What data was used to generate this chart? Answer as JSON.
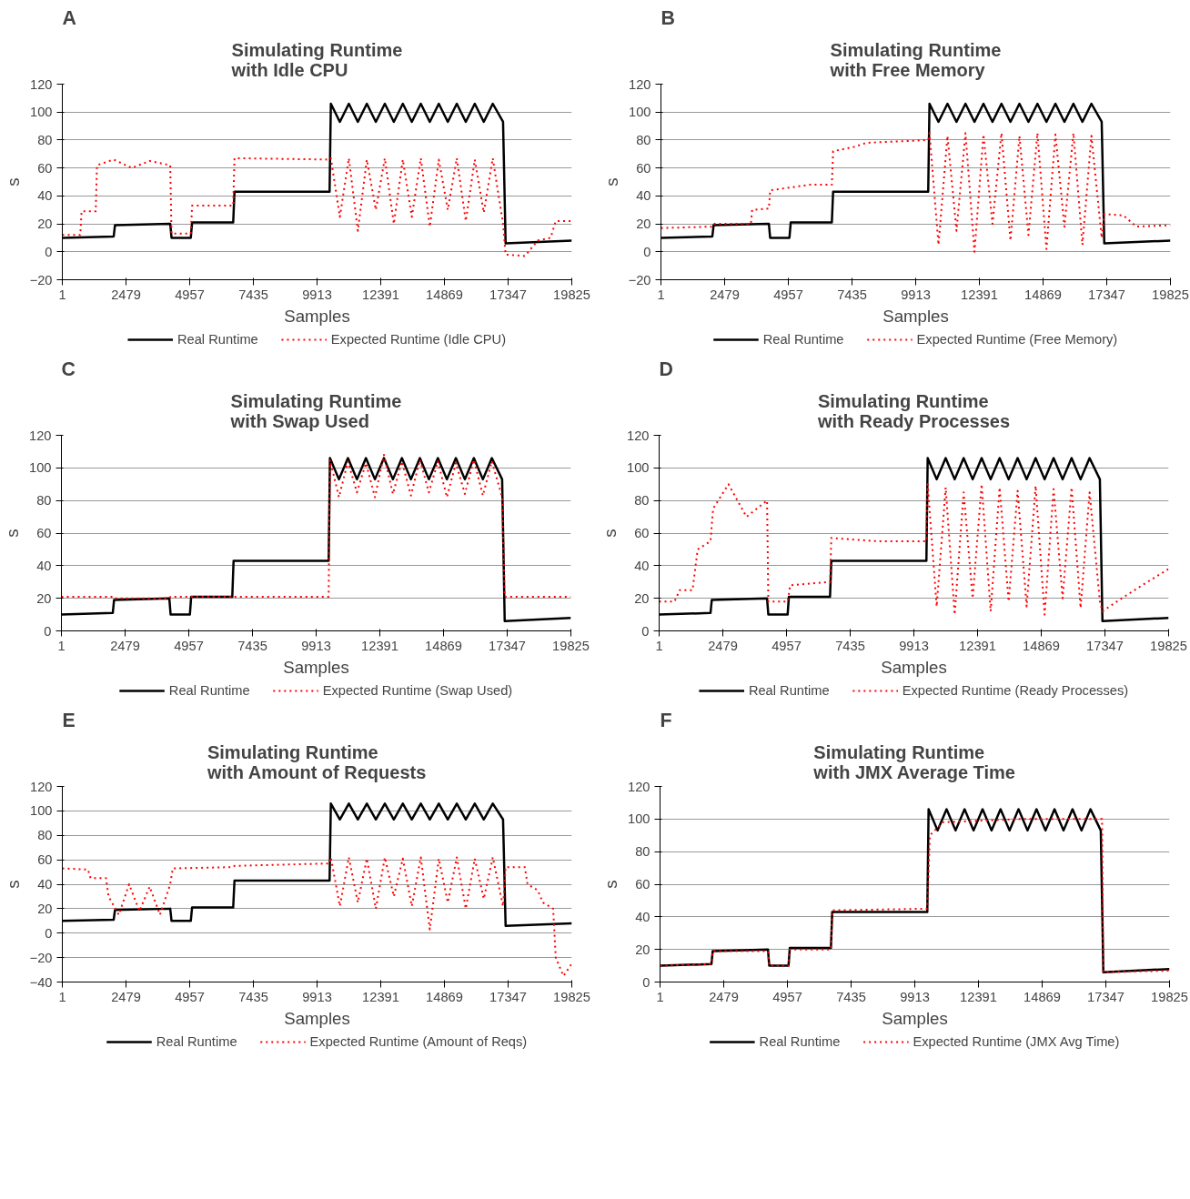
{
  "chart_data": [
    {
      "type": "line",
      "title": "Simulating Runtime\nwith Idle CPU",
      "annotations": [
        "A"
      ],
      "ylabel": "s",
      "xlabel": "Samples",
      "xlim": [
        1,
        19825
      ],
      "xticks": [
        1,
        2479,
        4957,
        7435,
        9913,
        12391,
        14869,
        17347,
        19825
      ],
      "ylim": [
        -20,
        120
      ],
      "yticks": [
        -20,
        0,
        20,
        40,
        60,
        80,
        100,
        120
      ],
      "grid": "y",
      "legend": "bottom",
      "marker": "none",
      "series": [
        {
          "name": "Real Runtime",
          "color": "#000000",
          "line_style": "solid",
          "x": [
            1,
            2000,
            2050,
            4200,
            4250,
            5000,
            5050,
            6650,
            6700,
            10400,
            10450,
            10800,
            11150,
            11500,
            11850,
            12200,
            12550,
            12900,
            13250,
            13600,
            13950,
            14300,
            14650,
            15000,
            15350,
            15700,
            16050,
            16400,
            16750,
            17150,
            17250,
            19825
          ],
          "values": [
            10,
            11,
            19,
            20,
            10,
            10,
            21,
            21,
            43,
            43,
            106,
            93,
            106,
            93,
            106,
            93,
            106,
            93,
            106,
            93,
            106,
            93,
            106,
            93,
            106,
            93,
            106,
            93,
            106,
            93,
            6,
            8
          ]
        },
        {
          "name": "Expected Runtime (Idle CPU)",
          "color": "#ff0000",
          "line_style": "dotted",
          "x": [
            1,
            700,
            750,
            1300,
            1350,
            2000,
            2700,
            3400,
            4200,
            4250,
            5000,
            5050,
            6650,
            6700,
            10400,
            10450,
            10800,
            11150,
            11500,
            11850,
            12200,
            12550,
            12900,
            13250,
            13600,
            13950,
            14300,
            14650,
            15000,
            15350,
            15700,
            16050,
            16400,
            16750,
            17150,
            17250,
            18000,
            18500,
            19000,
            19200,
            19825
          ],
          "values": [
            12,
            12,
            29,
            29,
            62,
            66,
            60,
            65,
            62,
            13,
            13,
            33,
            33,
            67,
            66,
            67,
            25,
            67,
            15,
            66,
            30,
            67,
            20,
            66,
            25,
            67,
            18,
            66,
            30,
            67,
            22,
            66,
            28,
            67,
            20,
            -2,
            -3,
            8,
            10,
            22,
            22
          ]
        }
      ]
    },
    {
      "type": "line",
      "title": "Simulating Runtime\nwith Free Memory",
      "annotations": [
        "B"
      ],
      "ylabel": "s",
      "xlabel": "Samples",
      "xlim": [
        1,
        19825
      ],
      "xticks": [
        1,
        2479,
        4957,
        7435,
        9913,
        12391,
        14869,
        17347,
        19825
      ],
      "ylim": [
        -20,
        120
      ],
      "yticks": [
        -20,
        0,
        20,
        40,
        60,
        80,
        100,
        120
      ],
      "grid": "y",
      "legend": "bottom",
      "marker": "none",
      "series": [
        {
          "name": "Real Runtime",
          "color": "#000000",
          "line_style": "solid",
          "x": [
            1,
            2000,
            2050,
            4200,
            4250,
            5000,
            5050,
            6650,
            6700,
            10400,
            10450,
            10800,
            11150,
            11500,
            11850,
            12200,
            12550,
            12900,
            13250,
            13600,
            13950,
            14300,
            14650,
            15000,
            15350,
            15700,
            16050,
            16400,
            16750,
            17150,
            17250,
            19825
          ],
          "values": [
            10,
            11,
            19,
            20,
            10,
            10,
            21,
            21,
            43,
            43,
            106,
            93,
            106,
            93,
            106,
            93,
            106,
            93,
            106,
            93,
            106,
            93,
            106,
            93,
            106,
            93,
            106,
            93,
            106,
            93,
            6,
            8
          ]
        },
        {
          "name": "Expected Runtime (Free Memory)",
          "color": "#ff0000",
          "line_style": "dotted",
          "x": [
            1,
            2000,
            2050,
            3500,
            3550,
            4200,
            4250,
            5800,
            6650,
            6700,
            7500,
            8000,
            10400,
            10450,
            10800,
            11150,
            11500,
            11850,
            12200,
            12550,
            12900,
            13250,
            13600,
            13950,
            14300,
            14650,
            15000,
            15350,
            15700,
            16050,
            16400,
            16750,
            17150,
            17250,
            18000,
            18500,
            19825
          ],
          "values": [
            17,
            18,
            20,
            20,
            30,
            31,
            44,
            48,
            48,
            72,
            75,
            78,
            80,
            85,
            5,
            83,
            15,
            85,
            0,
            84,
            20,
            85,
            8,
            83,
            12,
            85,
            2,
            84,
            18,
            85,
            5,
            83,
            10,
            27,
            26,
            18,
            19
          ]
        }
      ]
    },
    {
      "type": "line",
      "title": "Simulating Runtime\nwith Swap Used",
      "annotations": [
        "C"
      ],
      "ylabel": "s",
      "xlabel": "Samples",
      "xlim": [
        1,
        19825
      ],
      "xticks": [
        1,
        2479,
        4957,
        7435,
        9913,
        12391,
        14869,
        17347,
        19825
      ],
      "ylim": [
        0,
        120
      ],
      "yticks": [
        0,
        20,
        40,
        60,
        80,
        100,
        120
      ],
      "grid": "y",
      "legend": "bottom",
      "marker": "none",
      "series": [
        {
          "name": "Real Runtime",
          "color": "#000000",
          "line_style": "solid",
          "x": [
            1,
            2000,
            2050,
            4200,
            4250,
            5000,
            5050,
            6650,
            6700,
            10400,
            10450,
            10800,
            11150,
            11500,
            11850,
            12200,
            12550,
            12900,
            13250,
            13600,
            13950,
            14300,
            14650,
            15000,
            15350,
            15700,
            16050,
            16400,
            16750,
            17150,
            17250,
            19825
          ],
          "values": [
            10,
            11,
            19,
            20,
            10,
            10,
            21,
            21,
            43,
            43,
            106,
            93,
            106,
            93,
            106,
            93,
            106,
            93,
            106,
            93,
            106,
            93,
            106,
            93,
            106,
            93,
            106,
            93,
            106,
            93,
            6,
            8
          ]
        },
        {
          "name": "Expected Runtime (Swap Used)",
          "color": "#ff0000",
          "line_style": "dotted",
          "x": [
            1,
            2000,
            2050,
            4200,
            4250,
            10400,
            10450,
            10800,
            11150,
            11500,
            11850,
            12200,
            12550,
            12900,
            13250,
            13600,
            13950,
            14300,
            14650,
            15000,
            15350,
            15700,
            16050,
            16400,
            16750,
            17150,
            17250,
            19825
          ],
          "values": [
            21,
            21,
            20,
            20,
            21,
            21,
            105,
            82,
            104,
            85,
            103,
            82,
            108,
            84,
            104,
            83,
            105,
            85,
            104,
            82,
            103,
            84,
            105,
            83,
            104,
            82,
            21,
            21
          ]
        }
      ]
    },
    {
      "type": "line",
      "title": "Simulating Runtime\nwith Ready Processes",
      "annotations": [
        "D"
      ],
      "ylabel": "s",
      "xlabel": "Samples",
      "xlim": [
        1,
        19825
      ],
      "xticks": [
        1,
        2479,
        4957,
        7435,
        9913,
        12391,
        14869,
        17347,
        19825
      ],
      "ylim": [
        0,
        120
      ],
      "yticks": [
        0,
        20,
        40,
        60,
        80,
        100,
        120
      ],
      "grid": "y",
      "legend": "bottom",
      "marker": "none",
      "series": [
        {
          "name": "Real Runtime",
          "color": "#000000",
          "line_style": "solid",
          "x": [
            1,
            2000,
            2050,
            4200,
            4250,
            5000,
            5050,
            6650,
            6700,
            10400,
            10450,
            10800,
            11150,
            11500,
            11850,
            12200,
            12550,
            12900,
            13250,
            13600,
            13950,
            14300,
            14650,
            15000,
            15350,
            15700,
            16050,
            16400,
            16750,
            17150,
            17250,
            19825
          ],
          "values": [
            10,
            11,
            19,
            20,
            10,
            10,
            21,
            21,
            43,
            43,
            106,
            93,
            106,
            93,
            106,
            93,
            106,
            93,
            106,
            93,
            106,
            93,
            106,
            93,
            106,
            93,
            106,
            93,
            106,
            93,
            6,
            8
          ]
        },
        {
          "name": "Expected Runtime (Ready Processes)",
          "color": "#ff0000",
          "line_style": "dotted",
          "x": [
            1,
            600,
            800,
            1300,
            1500,
            2000,
            2100,
            2700,
            3400,
            4200,
            4250,
            5000,
            5100,
            6650,
            6700,
            8500,
            10400,
            10450,
            10800,
            11150,
            11500,
            11850,
            12200,
            12550,
            12900,
            13250,
            13600,
            13950,
            14300,
            14650,
            15000,
            15350,
            15700,
            16050,
            16400,
            16750,
            17150,
            17250,
            18000,
            19000,
            19825
          ],
          "values": [
            18,
            18,
            25,
            25,
            50,
            55,
            75,
            90,
            70,
            80,
            18,
            18,
            28,
            30,
            57,
            55,
            55,
            90,
            15,
            88,
            10,
            85,
            20,
            90,
            12,
            88,
            18,
            86,
            15,
            89,
            10,
            87,
            20,
            88,
            14,
            85,
            18,
            12,
            20,
            30,
            38
          ]
        }
      ]
    },
    {
      "type": "line",
      "title": "Simulating Runtime\nwith Amount of Requests",
      "annotations": [
        "E"
      ],
      "ylabel": "s",
      "xlabel": "Samples",
      "xlim": [
        1,
        19825
      ],
      "xticks": [
        1,
        2479,
        4957,
        7435,
        9913,
        12391,
        14869,
        17347,
        19825
      ],
      "ylim": [
        -40,
        120
      ],
      "yticks": [
        -40,
        -20,
        0,
        20,
        40,
        60,
        80,
        100,
        120
      ],
      "grid": "y",
      "legend": "bottom",
      "marker": "none",
      "series": [
        {
          "name": "Real Runtime",
          "color": "#000000",
          "line_style": "solid",
          "x": [
            1,
            2000,
            2050,
            4200,
            4250,
            5000,
            5050,
            6650,
            6700,
            10400,
            10450,
            10800,
            11150,
            11500,
            11850,
            12200,
            12550,
            12900,
            13250,
            13600,
            13950,
            14300,
            14650,
            15000,
            15350,
            15700,
            16050,
            16400,
            16750,
            17150,
            17250,
            19825
          ],
          "values": [
            10,
            11,
            19,
            20,
            10,
            10,
            21,
            21,
            43,
            43,
            106,
            93,
            106,
            93,
            106,
            93,
            106,
            93,
            106,
            93,
            106,
            93,
            106,
            93,
            106,
            93,
            106,
            93,
            106,
            93,
            6,
            8
          ]
        },
        {
          "name": "Expected Runtime (Amount of Reqs)",
          "color": "#ff0000",
          "line_style": "dotted",
          "x": [
            1,
            1000,
            1100,
            1700,
            1800,
            2200,
            2600,
            3000,
            3400,
            3800,
            4200,
            4300,
            6650,
            6700,
            10400,
            10450,
            10800,
            11150,
            11500,
            11850,
            12200,
            12550,
            12900,
            13250,
            13600,
            13950,
            14300,
            14650,
            15000,
            15350,
            15700,
            16050,
            16400,
            16750,
            17150,
            17250,
            18000,
            18100,
            18500,
            18700,
            19100,
            19200,
            19500,
            19825
          ],
          "values": [
            53,
            52,
            45,
            45,
            30,
            15,
            40,
            18,
            38,
            15,
            40,
            53,
            54,
            55,
            57,
            62,
            22,
            62,
            25,
            61,
            20,
            62,
            30,
            61,
            22,
            62,
            3,
            61,
            25,
            62,
            20,
            61,
            28,
            62,
            22,
            54,
            54,
            40,
            35,
            25,
            20,
            -20,
            -35,
            -25
          ]
        }
      ]
    },
    {
      "type": "line",
      "title": "Simulating Runtime\nwith JMX Average Time",
      "annotations": [
        "F"
      ],
      "ylabel": "s",
      "xlabel": "Samples",
      "xlim": [
        1,
        19825
      ],
      "xticks": [
        1,
        2479,
        4957,
        7435,
        9913,
        12391,
        14869,
        17347,
        19825
      ],
      "ylim": [
        0,
        120
      ],
      "yticks": [
        0,
        20,
        40,
        60,
        80,
        100,
        120
      ],
      "grid": "y",
      "legend": "bottom",
      "marker": "none",
      "series": [
        {
          "name": "Real Runtime",
          "color": "#000000",
          "line_style": "solid",
          "x": [
            1,
            2000,
            2050,
            4200,
            4250,
            5000,
            5050,
            6650,
            6700,
            10400,
            10450,
            10800,
            11150,
            11500,
            11850,
            12200,
            12550,
            12900,
            13250,
            13600,
            13950,
            14300,
            14650,
            15000,
            15350,
            15700,
            16050,
            16400,
            16750,
            17150,
            17250,
            19825
          ],
          "values": [
            10,
            11,
            19,
            20,
            10,
            10,
            21,
            21,
            43,
            43,
            106,
            93,
            106,
            93,
            106,
            93,
            106,
            93,
            106,
            93,
            106,
            93,
            106,
            93,
            106,
            93,
            106,
            93,
            106,
            93,
            6,
            8
          ]
        },
        {
          "name": "Expected Runtime (JMX Avg Time)",
          "color": "#ff0000",
          "line_style": "dotted",
          "x": [
            1,
            2000,
            2050,
            4200,
            4250,
            5000,
            5050,
            6650,
            6700,
            10400,
            10500,
            11000,
            14000,
            17200,
            17250,
            19825
          ],
          "values": [
            10,
            11,
            19,
            19,
            10,
            10,
            20,
            20,
            44,
            45,
            90,
            98,
            100,
            100,
            6,
            7
          ]
        }
      ]
    }
  ]
}
